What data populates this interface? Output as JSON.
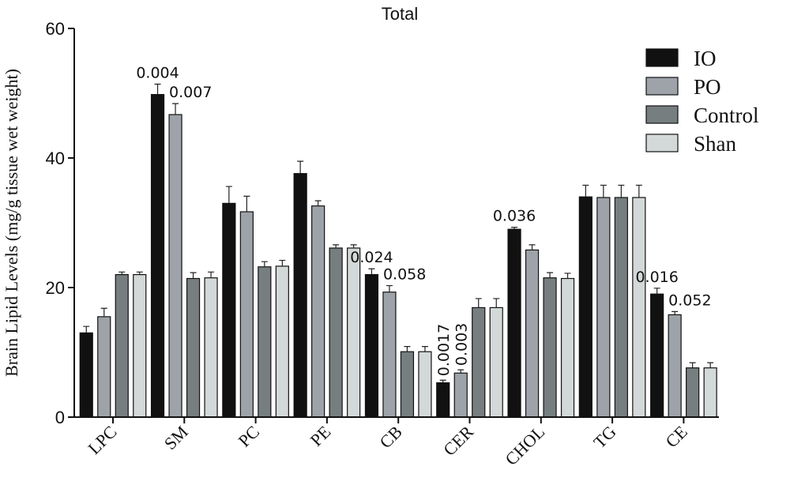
{
  "chart_data": {
    "type": "bar",
    "title": "Total",
    "xlabel": "",
    "ylabel": "Brain Lipid Levels (mg/g tissue wet weight)",
    "ylim": [
      0,
      60
    ],
    "yticks": [
      0,
      20,
      40,
      60
    ],
    "categories": [
      "LPC",
      "SM",
      "PC",
      "PE",
      "CB",
      "CER",
      "CHOL",
      "TG",
      "CE"
    ],
    "legend_position": "top-right",
    "grid": false,
    "series": [
      {
        "name": "IO",
        "color": "#111111",
        "values": [
          13,
          49.8,
          33,
          37.6,
          22,
          5.3,
          29,
          34,
          19
        ],
        "errors": [
          1,
          1.6,
          2.6,
          1.9,
          0.9,
          0.4,
          0.3,
          1.8,
          0.9
        ]
      },
      {
        "name": "PO",
        "color": "#9da3a9",
        "values": [
          15.5,
          46.7,
          31.7,
          32.6,
          19.3,
          6.8,
          25.8,
          33.9,
          15.8
        ],
        "errors": [
          1.3,
          1.7,
          2.4,
          0.8,
          1,
          0.5,
          0.8,
          1.9,
          0.5
        ]
      },
      {
        "name": "Control",
        "color": "#767e80",
        "values": [
          22,
          21.4,
          23.2,
          26.1,
          10.1,
          16.9,
          21.5,
          33.9,
          7.6
        ],
        "errors": [
          0.4,
          0.9,
          0.8,
          0.5,
          0.8,
          1.4,
          0.8,
          1.9,
          0.8
        ]
      },
      {
        "name": "Shan",
        "color": "#d3d8d8",
        "values": [
          22,
          21.5,
          23.3,
          26.1,
          10.1,
          16.9,
          21.4,
          33.9,
          7.6
        ],
        "errors": [
          0.4,
          0.9,
          0.9,
          0.5,
          0.8,
          1.4,
          0.8,
          1.9,
          0.8
        ]
      }
    ],
    "annotations": [
      {
        "text": "0.004",
        "category": "SM",
        "series": "IO",
        "rotated": false
      },
      {
        "text": "0.007",
        "category": "SM",
        "series": "PO",
        "rotated": false
      },
      {
        "text": "0.024",
        "category": "CB",
        "series": "IO",
        "rotated": false
      },
      {
        "text": "0.058",
        "category": "CB",
        "series": "PO",
        "rotated": false
      },
      {
        "text": "0.0017",
        "category": "CER",
        "series": "IO",
        "rotated": true
      },
      {
        "text": "0.003",
        "category": "CER",
        "series": "PO",
        "rotated": true
      },
      {
        "text": "0.036",
        "category": "CHOL",
        "series": "IO",
        "rotated": false
      },
      {
        "text": "0.016",
        "category": "CE",
        "series": "IO",
        "rotated": false
      },
      {
        "text": "0.052",
        "category": "CE",
        "series": "PO",
        "rotated": false
      }
    ]
  }
}
